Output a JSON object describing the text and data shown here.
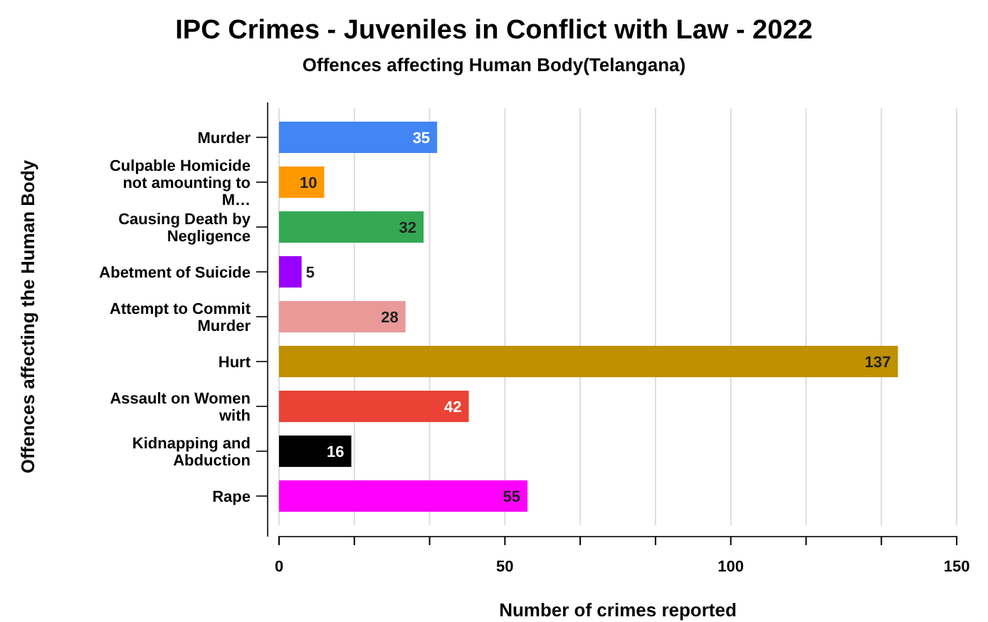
{
  "chart_data": {
    "type": "bar",
    "orientation": "horizontal",
    "title": "IPC Crimes - Juveniles in Conflict with Law - 2022",
    "subtitle": "Offences affecting Human Body(Telangana)",
    "xlabel": "Number of crimes reported",
    "ylabel": "Offences affecting the Human Body",
    "categories": [
      "Murder",
      "Culpable Homicide not amounting to M…",
      "Causing Death by Negligence",
      "Abetment of Suicide",
      "Attempt to Commit Murder",
      "Hurt",
      "Assault on Women with",
      "Kidnapping and Abduction",
      "Rape"
    ],
    "values": [
      35,
      10,
      32,
      5,
      28,
      137,
      42,
      16,
      55
    ],
    "colors": [
      "#4285f4",
      "#ff9900",
      "#34a853",
      "#9900ff",
      "#ea9999",
      "#bf9000",
      "#ea4335",
      "#000000",
      "#ff00ff"
    ],
    "xlim": [
      0,
      150
    ],
    "xticks": [
      0,
      {
        "value": 16.667,
        "label": null
      },
      {
        "value": 33.333,
        "label": null
      },
      50,
      {
        "value": 66.667,
        "label": null
      },
      {
        "value": 83.333,
        "label": null
      },
      100,
      {
        "value": 116.667,
        "label": null
      },
      {
        "value": 133.333,
        "label": null
      },
      150
    ],
    "grid": "x",
    "data_labels": true
  }
}
